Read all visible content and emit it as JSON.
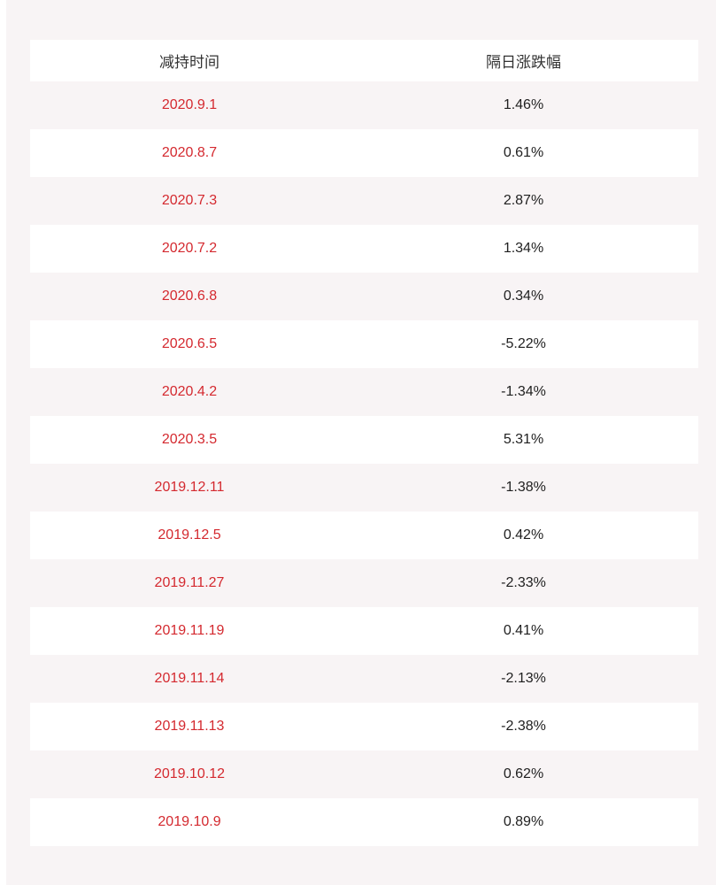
{
  "table": {
    "headers": [
      "减持时间",
      "隔日涨跌幅"
    ],
    "rows": [
      {
        "date": "2020.9.1",
        "change": "1.46%"
      },
      {
        "date": "2020.8.7",
        "change": "0.61%"
      },
      {
        "date": "2020.7.3",
        "change": "2.87%"
      },
      {
        "date": "2020.7.2",
        "change": "1.34%"
      },
      {
        "date": "2020.6.8",
        "change": "0.34%"
      },
      {
        "date": "2020.6.5",
        "change": "-5.22%"
      },
      {
        "date": "2020.4.2",
        "change": "-1.34%"
      },
      {
        "date": "2020.3.5",
        "change": "5.31%"
      },
      {
        "date": "2019.12.11",
        "change": "-1.38%"
      },
      {
        "date": "2019.12.5",
        "change": "0.42%"
      },
      {
        "date": "2019.11.27",
        "change": "-2.33%"
      },
      {
        "date": "2019.11.19",
        "change": "0.41%"
      },
      {
        "date": "2019.11.14",
        "change": "-2.13%"
      },
      {
        "date": "2019.11.13",
        "change": "-2.38%"
      },
      {
        "date": "2019.10.12",
        "change": "0.62%"
      },
      {
        "date": "2019.10.9",
        "change": "0.89%"
      }
    ]
  },
  "colors": {
    "date_text": "#d4292f",
    "value_text": "#1f1f1f",
    "stripe": "#f8f4f5"
  }
}
